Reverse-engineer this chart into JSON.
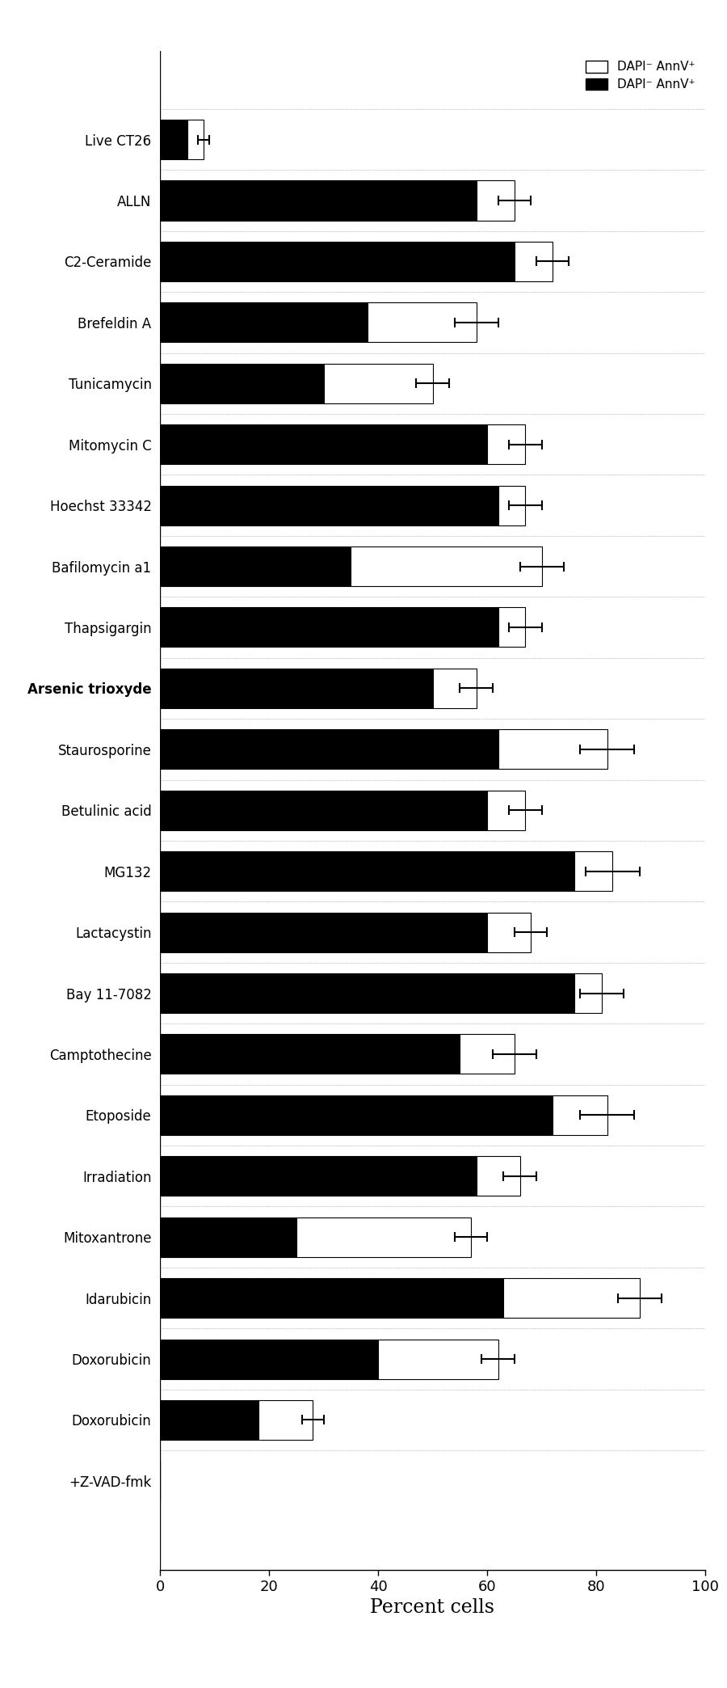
{
  "categories": [
    "Live CT26",
    "ALLN",
    "C2-Ceramide",
    "Brefeldin A",
    "Tunicamycin",
    "Mitomycin C",
    "Hoechst 33342",
    "Bafilomycin a1",
    "Thapsigargin",
    "Arsenic trioxyde",
    "Staurosporine",
    "Betulinic acid",
    "MG132",
    "Lactacystin",
    "Bay 11-7082",
    "Camptothecine",
    "Etoposide",
    "Irradiation",
    "Mitoxantrone",
    "Idarubicin",
    "Doxorubicin",
    "Doxorubicin",
    "+Z-VAD-fmk"
  ],
  "black_values": [
    5,
    58,
    65,
    38,
    30,
    60,
    62,
    35,
    62,
    50,
    62,
    60,
    76,
    60,
    76,
    55,
    72,
    58,
    25,
    63,
    40,
    18,
    0
  ],
  "white_values": [
    3,
    7,
    7,
    20,
    20,
    7,
    5,
    35,
    5,
    8,
    20,
    7,
    7,
    8,
    5,
    10,
    10,
    8,
    32,
    25,
    22,
    10,
    0
  ],
  "black_errors": [
    1,
    3,
    3,
    4,
    3,
    3,
    3,
    4,
    3,
    3,
    5,
    3,
    5,
    3,
    4,
    4,
    5,
    3,
    3,
    4,
    3,
    2,
    0
  ],
  "bold_labels": [
    "Arsenic trioxyde"
  ],
  "xlabel": "Percent cells",
  "xlim": [
    0,
    100
  ],
  "xticks": [
    0,
    20,
    40,
    60,
    80,
    100
  ],
  "background_color": "#ffffff",
  "bar_height": 0.65,
  "black_color": "#000000",
  "white_color": "#ffffff",
  "white_edgecolor": "#000000",
  "legend_white_label": "DAPI⁻ AnnV⁺",
  "legend_black_label": "DAPI⁻ AnnV⁺",
  "figsize": [
    9.0,
    20.88
  ],
  "dpi": 100
}
